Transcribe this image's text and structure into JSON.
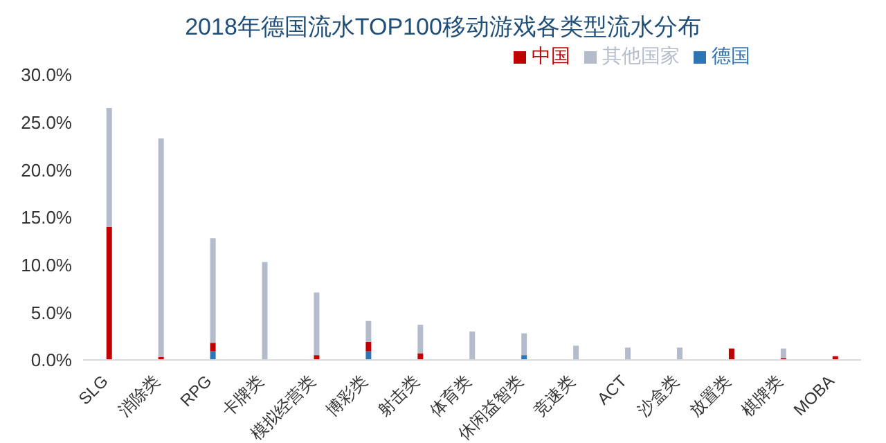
{
  "chart_data": {
    "type": "bar",
    "title": "2018年德国流水TOP100移动游戏各类型流水分布",
    "categories": [
      "SLG",
      "消除类",
      "RPG",
      "卡牌类",
      "模拟经营类",
      "博彩类",
      "射击类",
      "体育类",
      "休闲益智类",
      "竞速类",
      "ACT",
      "沙盒类",
      "放置类",
      "棋牌类",
      "MOBA"
    ],
    "stacked": true,
    "series": [
      {
        "name": "德国",
        "color": "#2e75b6",
        "values": [
          0,
          0,
          0.9,
          0,
          0,
          0.9,
          0,
          0,
          0.5,
          0,
          0,
          0,
          0,
          0,
          0
        ]
      },
      {
        "name": "中国",
        "color": "#c00000",
        "values": [
          14.0,
          0.3,
          0.9,
          0,
          0.5,
          1.0,
          0.7,
          0,
          0,
          0,
          0,
          0,
          1.2,
          0.2,
          0.4
        ]
      },
      {
        "name": "其他国家",
        "color": "#b4bccb",
        "values": [
          12.5,
          23.0,
          11.0,
          10.3,
          6.6,
          2.2,
          3.0,
          3.0,
          2.3,
          1.5,
          1.3,
          1.3,
          0,
          1.0,
          0
        ]
      }
    ],
    "ylim": [
      0,
      30
    ],
    "yticks": [
      {
        "value": 0,
        "label": "0.0%"
      },
      {
        "value": 5,
        "label": "5.0%"
      },
      {
        "value": 10,
        "label": "10.0%"
      },
      {
        "value": 15,
        "label": "15.0%"
      },
      {
        "value": 20,
        "label": "20.0%"
      },
      {
        "value": 25,
        "label": "25.0%"
      },
      {
        "value": 30,
        "label": "30.0%"
      }
    ],
    "grid": false,
    "legend": "top right"
  }
}
